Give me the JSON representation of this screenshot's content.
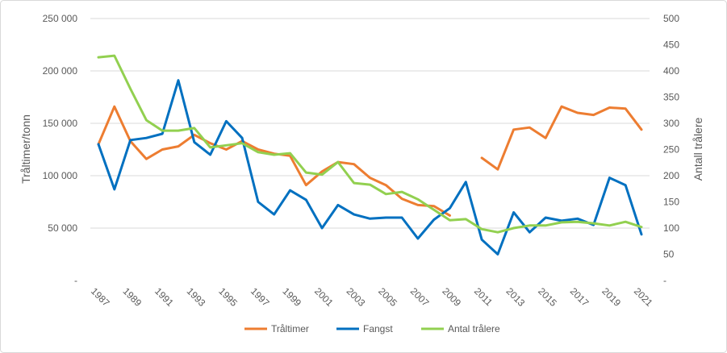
{
  "chart_data": {
    "type": "line",
    "x": [
      1987,
      1988,
      1989,
      1990,
      1991,
      1992,
      1993,
      1994,
      1995,
      1996,
      1997,
      1998,
      1999,
      2000,
      2001,
      2002,
      2003,
      2004,
      2005,
      2006,
      2007,
      2008,
      2009,
      2010,
      2011,
      2012,
      2013,
      2014,
      2015,
      2016,
      2017,
      2018,
      2019,
      2020,
      2021
    ],
    "x_tick_labels": [
      "1987",
      "1989",
      "1991",
      "1993",
      "1995",
      "1997",
      "1999",
      "2001",
      "2003",
      "2005",
      "2007",
      "2009",
      "2011",
      "2013",
      "2015",
      "2017",
      "2019",
      "2021"
    ],
    "ylabel": "Tråltimer/tonn",
    "y2label": "Antall trålere",
    "ylim": [
      0,
      250000
    ],
    "y2lim": [
      0,
      500
    ],
    "y_tick_labels": [
      "-",
      "50 000",
      "100 000",
      "150 000",
      "200 000",
      "250 000"
    ],
    "y2_tick_labels": [
      "-",
      "50",
      "100",
      "150",
      "200",
      "250",
      "300",
      "350",
      "400",
      "450",
      "500"
    ],
    "grid": true,
    "legend": "bottom",
    "series": [
      {
        "name": "Tråltimer",
        "axis": "left",
        "color": "#ED7D31",
        "values": [
          130000,
          166000,
          133000,
          116000,
          125000,
          128000,
          139000,
          131000,
          125000,
          133000,
          125000,
          121000,
          119000,
          91000,
          104000,
          113000,
          111000,
          98000,
          91000,
          78000,
          72000,
          71000,
          62000,
          null,
          117000,
          106000,
          144000,
          146000,
          136000,
          166000,
          160000,
          158000,
          165000,
          164000,
          144000
        ]
      },
      {
        "name": "Fangst",
        "axis": "left",
        "color": "#0070C0",
        "values": [
          130000,
          87000,
          134000,
          136000,
          140000,
          191000,
          132000,
          120000,
          152000,
          136000,
          75000,
          63000,
          86000,
          77000,
          50000,
          72000,
          63000,
          59000,
          60000,
          60000,
          40000,
          58000,
          69000,
          94000,
          39000,
          25000,
          65000,
          46000,
          60000,
          57000,
          59000,
          53000,
          98000,
          91000,
          44000
        ]
      },
      {
        "name": "Antal trålere",
        "axis": "right",
        "color": "#92D050",
        "values": [
          426,
          429,
          366,
          306,
          286,
          286,
          291,
          254,
          258,
          262,
          245,
          240,
          243,
          206,
          202,
          226,
          186,
          183,
          165,
          169,
          155,
          135,
          115,
          117,
          98,
          92,
          100,
          105,
          105,
          111,
          112,
          109,
          105,
          112,
          102
        ]
      }
    ]
  }
}
